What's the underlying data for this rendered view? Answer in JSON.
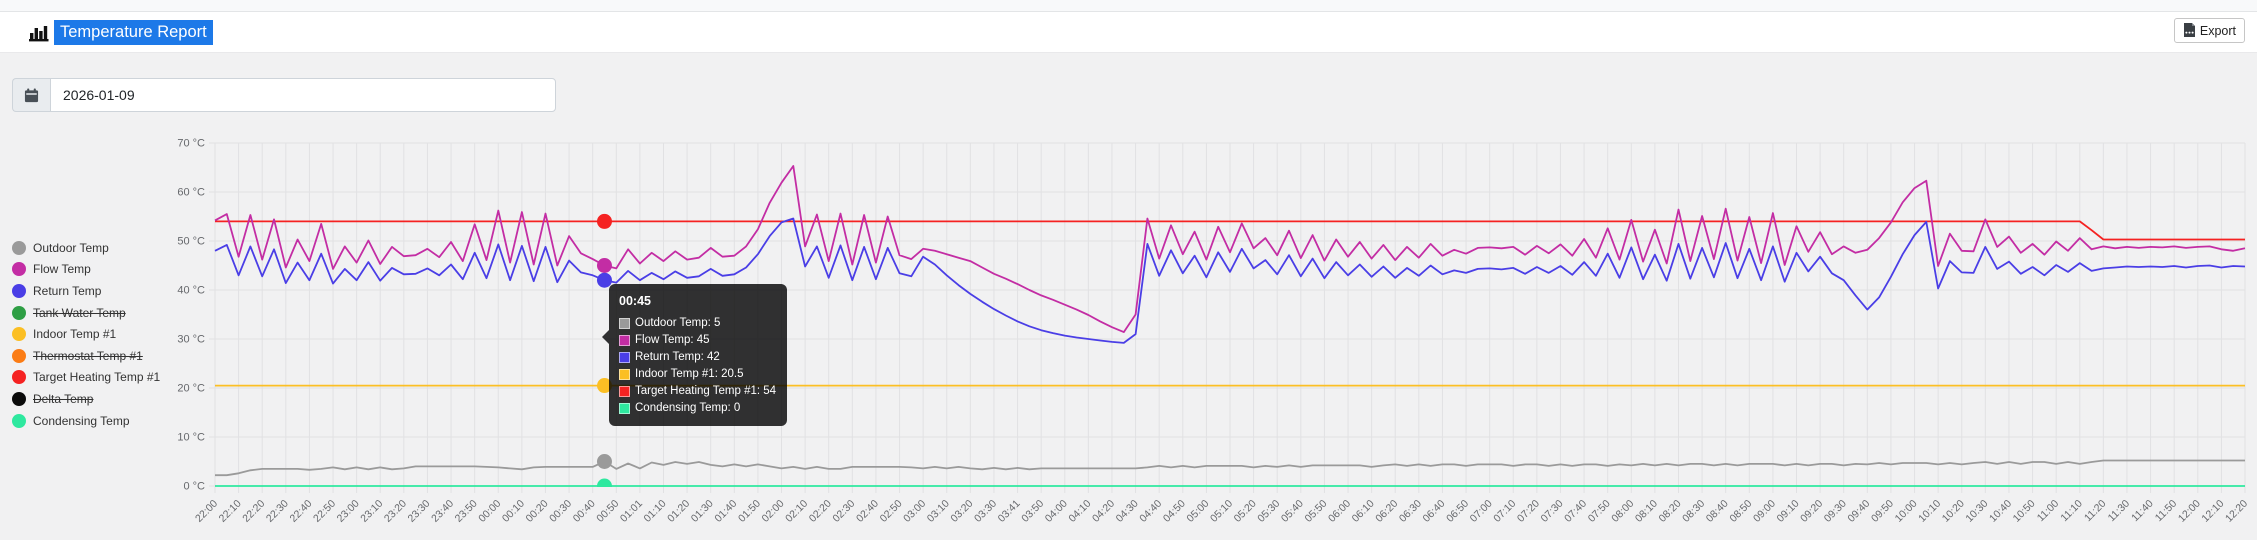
{
  "header": {
    "title": "Temperature Report",
    "export_label": "Export"
  },
  "date_input": {
    "value": "2026-01-09"
  },
  "legend": {
    "items": [
      {
        "label": "Outdoor Temp",
        "color": "#9a9a9a",
        "disabled": false
      },
      {
        "label": "Flow Temp",
        "color": "#c32da4",
        "disabled": false
      },
      {
        "label": "Return Temp",
        "color": "#4a3ee6",
        "disabled": false
      },
      {
        "label": "Tank Water Temp",
        "color": "#2e9e44",
        "disabled": true
      },
      {
        "label": "Indoor Temp #1",
        "color": "#fbbf24",
        "disabled": false
      },
      {
        "label": "Thermostat Temp #1",
        "color": "#fb7c15",
        "disabled": true
      },
      {
        "label": "Target Heating Temp #1",
        "color": "#f52222",
        "disabled": false
      },
      {
        "label": "Delta Temp",
        "color": "#0b0b0b",
        "disabled": true
      },
      {
        "label": "Condensing Temp",
        "color": "#2ee89f",
        "disabled": false
      }
    ]
  },
  "tooltip": {
    "title": "00:45",
    "index": 33,
    "rows": [
      {
        "label": "Outdoor Temp",
        "value": "5",
        "color": "#9a9a9a"
      },
      {
        "label": "Flow Temp",
        "value": "45",
        "color": "#c32da4"
      },
      {
        "label": "Return Temp",
        "value": "42",
        "color": "#4a3ee6"
      },
      {
        "label": "Indoor Temp #1",
        "value": "20.5",
        "color": "#fbbf24"
      },
      {
        "label": "Target Heating Temp #1",
        "value": "54",
        "color": "#f52222"
      },
      {
        "label": "Condensing Temp",
        "value": "0",
        "color": "#2ee89f"
      }
    ]
  },
  "chart_data": {
    "type": "line",
    "title": "Temperature Report",
    "ylim": [
      0,
      70
    ],
    "y_tick_step": 10,
    "y_tick_labels": [
      "70 °C",
      "60 °C",
      "50 °C",
      "40 °C",
      "30 °C",
      "20 °C",
      "10 °C",
      "0 °C"
    ],
    "grid": true,
    "legend_position": "left",
    "points_per_label_interval": 2,
    "x_labels": [
      "22:00",
      "22:10",
      "22:20",
      "22:30",
      "22:40",
      "22:50",
      "23:00",
      "23:10",
      "23:20",
      "23:30",
      "23:40",
      "23:50",
      "00:00",
      "00:10",
      "00:20",
      "00:30",
      "00:40",
      "00:50",
      "01:01",
      "01:10",
      "01:20",
      "01:30",
      "01:40",
      "01:50",
      "02:00",
      "02:10",
      "02:20",
      "02:30",
      "02:40",
      "02:50",
      "03:00",
      "03:10",
      "03:20",
      "03:30",
      "03:41",
      "03:50",
      "04:00",
      "04:10",
      "04:20",
      "04:30",
      "04:40",
      "04:50",
      "05:00",
      "05:10",
      "05:20",
      "05:30",
      "05:40",
      "05:50",
      "06:00",
      "06:10",
      "06:20",
      "06:30",
      "06:40",
      "06:50",
      "07:00",
      "07:10",
      "07:20",
      "07:30",
      "07:40",
      "07:50",
      "08:00",
      "08:10",
      "08:20",
      "08:30",
      "08:40",
      "08:50",
      "09:00",
      "09:10",
      "09:20",
      "09:30",
      "09:40",
      "09:50",
      "10:00",
      "10:10",
      "10:20",
      "10:30",
      "10:40",
      "10:50",
      "11:00",
      "11:10",
      "11:20",
      "11:30",
      "11:40",
      "11:50",
      "12:00",
      "12:10",
      "12:20"
    ],
    "hidden_series": [
      "Tank Water Temp",
      "Thermostat Temp #1",
      "Delta Temp"
    ],
    "series": [
      {
        "name": "Indoor Temp #1",
        "color": "#fbbf24",
        "constant": 20.5
      },
      {
        "name": "Condensing Temp",
        "color": "#2ee89f",
        "constant": 0
      },
      {
        "name": "Target Heating Temp #1",
        "color": "#f52222",
        "values": [
          54,
          54,
          54,
          54,
          54,
          54,
          54,
          54,
          54,
          54,
          54,
          54,
          54,
          54,
          54,
          54,
          54,
          54,
          54,
          54,
          54,
          54,
          54,
          54,
          54,
          54,
          54,
          54,
          54,
          54,
          54,
          54,
          54,
          54,
          54,
          54,
          54,
          54,
          54,
          54,
          54,
          54,
          54,
          54,
          54,
          54,
          54,
          54,
          54,
          54,
          54,
          54,
          54,
          54,
          54,
          54,
          54,
          54,
          54,
          54,
          54,
          54,
          54,
          54,
          54,
          54,
          54,
          54,
          54,
          54,
          54,
          54,
          54,
          54,
          54,
          54,
          54,
          54,
          54,
          54,
          54,
          54,
          54,
          54,
          54,
          54,
          54,
          54,
          54,
          54,
          54,
          54,
          54,
          54,
          54,
          54,
          54,
          54,
          54,
          54,
          54,
          54,
          54,
          54,
          54,
          54,
          54,
          54,
          54,
          54,
          54,
          54,
          54,
          54,
          54,
          54,
          54,
          54,
          54,
          54,
          54,
          54,
          54,
          54,
          54,
          54,
          54,
          54,
          54,
          54,
          54,
          54,
          54,
          54,
          54,
          54,
          54,
          54,
          54,
          54,
          54,
          54,
          54,
          54,
          54,
          54,
          54,
          54,
          54,
          54,
          54,
          54,
          54,
          54,
          54,
          54,
          54,
          54,
          54,
          52.2,
          50.3,
          50.3,
          50.3,
          50.3,
          50.3,
          50.3,
          50.3,
          50.3,
          50.3,
          50.3,
          50.3,
          50.3,
          50.3
        ]
      },
      {
        "name": "Outdoor Temp",
        "color": "#9a9a9a",
        "values": [
          2.2,
          2.2,
          2.6,
          3.2,
          3.5,
          3.5,
          3.5,
          3.5,
          3.3,
          3.5,
          3.8,
          3.4,
          3.8,
          3.4,
          3.8,
          3.4,
          3.6,
          4,
          4,
          4,
          4,
          4,
          4,
          3.9,
          3.8,
          3.6,
          3.4,
          3.8,
          3.9,
          3.9,
          3.9,
          3.9,
          3.9,
          5,
          3.5,
          4.6,
          3.6,
          4.8,
          4.3,
          4.9,
          4.5,
          4.9,
          4.3,
          4,
          4.4,
          4,
          4.4,
          4,
          3.6,
          3.9,
          3.5,
          3.9,
          3.5,
          3.5,
          3.9,
          3.9,
          3.9,
          3.9,
          3.9,
          3.8,
          3.6,
          3.9,
          3.6,
          3.9,
          3.6,
          3.4,
          3.7,
          3.4,
          3.7,
          3.4,
          3.6,
          3.6,
          3.6,
          3.6,
          3.6,
          3.6,
          3.6,
          3.6,
          3.6,
          3.8,
          4.1,
          3.8,
          4.1,
          3.8,
          4.1,
          4.1,
          4.1,
          4.1,
          3.8,
          4.1,
          3.9,
          4.2,
          3.9,
          4.2,
          4.2,
          4.2,
          4.2,
          4.2,
          3.9,
          4.2,
          4.4,
          4.1,
          4.4,
          4.1,
          4.4,
          4.4,
          4.1,
          4.4,
          4.4,
          4.4,
          4.1,
          4.4,
          4.4,
          4.1,
          4.4,
          4.1,
          4.4,
          4.4,
          4.1,
          4.4,
          4.2,
          4.5,
          4.2,
          4.5,
          4.2,
          4.5,
          4.5,
          4.2,
          4.5,
          4.2,
          4.5,
          4.5,
          4.5,
          4.2,
          4.5,
          4.2,
          4.5,
          4.5,
          4.2,
          4.5,
          4.4,
          4.7,
          4.4,
          4.7,
          4.7,
          4.7,
          4.4,
          4.7,
          4.4,
          4.7,
          4.9,
          4.5,
          4.9,
          4.5,
          4.9,
          4.9,
          4.5,
          4.9,
          4.5,
          4.9,
          5.2,
          5.2,
          5.2,
          5.2,
          5.2,
          5.2,
          5.2,
          5.2,
          5.2,
          5.2,
          5.2,
          5.2,
          5.2
        ]
      },
      {
        "name": "Return Temp",
        "color": "#4a3ee6",
        "values": [
          48,
          49.2,
          43,
          48.9,
          42.8,
          48.3,
          41.4,
          45.6,
          42,
          47.4,
          41.3,
          44.3,
          42,
          45.7,
          41.9,
          44.5,
          43.2,
          43.3,
          44.4,
          43,
          45.2,
          42.2,
          47.6,
          42.4,
          49.3,
          42,
          49,
          41.8,
          48.8,
          41.6,
          46,
          43.6,
          43,
          42,
          41.5,
          43.9,
          42,
          43.5,
          42.2,
          43.8,
          42.5,
          42.8,
          44.3,
          42.9,
          43.2,
          44.6,
          47.3,
          51,
          53.8,
          54.6,
          44.8,
          48.9,
          42.5,
          49.1,
          42,
          48.8,
          42.2,
          48.6,
          43.4,
          42.8,
          46.8,
          45.2,
          43,
          41,
          39.2,
          37.6,
          36.1,
          34.8,
          33.6,
          32.6,
          31.8,
          31.2,
          30.7,
          30.3,
          30,
          29.7,
          29.4,
          29.2,
          31,
          49.4,
          42.9,
          48.1,
          43.4,
          47,
          42.6,
          47.7,
          43.7,
          48.4,
          44.4,
          46.1,
          43.2,
          47.1,
          42.8,
          46.4,
          42.4,
          45.7,
          43,
          45.2,
          42.7,
          44.8,
          42.5,
          44.5,
          42.9,
          45,
          43.2,
          44,
          43.5,
          44.3,
          44.4,
          44.2,
          44.5,
          43.3,
          44.7,
          43.5,
          44.9,
          43.1,
          45.7,
          42.9,
          47.4,
          42.5,
          48.7,
          42.2,
          47.2,
          41.9,
          49.4,
          42.3,
          48.6,
          42.6,
          49.6,
          42.4,
          48.4,
          42,
          48.9,
          41.7,
          47.6,
          43.8,
          46.8,
          43.4,
          42,
          38.9,
          36,
          38.5,
          42.7,
          47.3,
          51.2,
          53.9,
          40.3,
          45.9,
          43.6,
          43.5,
          48.8,
          44.3,
          45.8,
          43.3,
          44.7,
          43,
          45.1,
          43.7,
          45.5,
          43.9,
          44.4,
          44.6,
          44.8,
          44.7,
          44.8,
          44.7,
          44.9,
          44.6,
          44.9,
          45,
          44.6,
          44.9,
          44.8
        ]
      },
      {
        "name": "Flow Temp",
        "color": "#c32da4",
        "values": [
          54.2,
          55.5,
          46.8,
          55.3,
          46.2,
          54.4,
          44.6,
          50.3,
          45.9,
          53.5,
          44.3,
          48.9,
          45.6,
          50.1,
          45.3,
          48.8,
          46.9,
          47.1,
          48.4,
          46.7,
          49.8,
          45.9,
          53.4,
          46.1,
          56.2,
          45.6,
          55.9,
          45.2,
          55.6,
          45,
          51,
          47.5,
          46.3,
          45,
          44.4,
          48.3,
          45.4,
          47.6,
          45.9,
          47.9,
          46.2,
          46.6,
          48.6,
          46.8,
          47,
          48.9,
          52.4,
          57.8,
          61.9,
          65.3,
          48.9,
          55.4,
          45.9,
          55.6,
          45.2,
          55.3,
          45.6,
          55,
          47.1,
          46.3,
          48.4,
          48,
          47.3,
          46.6,
          45.9,
          44.6,
          43.3,
          42.3,
          41.2,
          40,
          38.9,
          38,
          37,
          36,
          34.9,
          33.6,
          32.4,
          31.4,
          35,
          54.6,
          46.4,
          53.2,
          47.3,
          51.9,
          46.2,
          52.9,
          47.7,
          53.6,
          48.5,
          50.6,
          47.1,
          52.1,
          46.5,
          51.2,
          46,
          50.3,
          46.8,
          49.8,
          46.4,
          49.2,
          46.1,
          48.8,
          46.6,
          49.4,
          47,
          48.2,
          47.4,
          48.6,
          48.7,
          48.5,
          48.8,
          47.2,
          49,
          47.5,
          49.3,
          47,
          50.4,
          46.6,
          52.6,
          46.2,
          54.3,
          45.8,
          52.3,
          45.4,
          56.4,
          45.9,
          55.1,
          46.3,
          56.6,
          46,
          54.9,
          45.5,
          55.7,
          45.1,
          53,
          47.8,
          51.8,
          47.3,
          48.9,
          47.6,
          48.2,
          50.6,
          53.8,
          57.9,
          60.8,
          62.3,
          44.9,
          51.5,
          48,
          47.9,
          54.4,
          48.8,
          50.9,
          47.6,
          49.4,
          47.2,
          49.9,
          48,
          50.6,
          48.3,
          48.9,
          48.5,
          48.8,
          48.6,
          48.8,
          48.7,
          48.9,
          48.6,
          48.8,
          48.9,
          48.3,
          48,
          48.5
        ]
      }
    ]
  }
}
